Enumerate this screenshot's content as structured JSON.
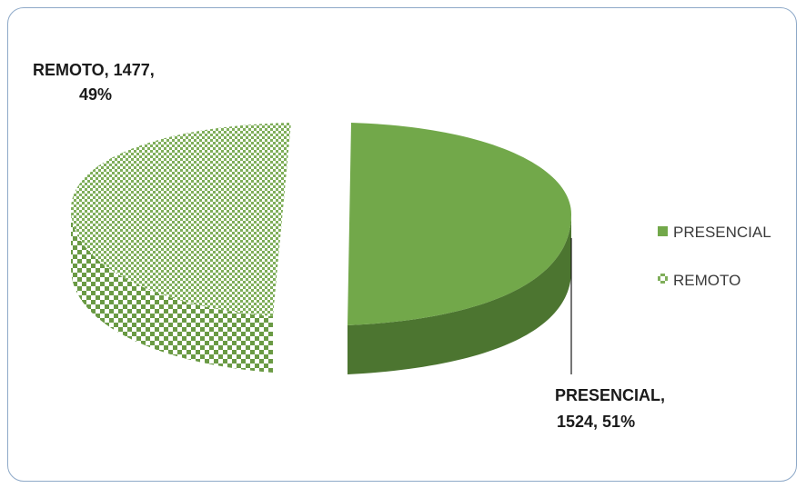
{
  "chart_data": {
    "type": "pie",
    "title": "",
    "categories": [
      "PRESENCIAL",
      "REMOTO"
    ],
    "values": [
      1524,
      1477
    ],
    "percents": [
      51,
      49
    ],
    "data_labels": [
      {
        "line1": "PRESENCIAL,",
        "line2": "1524, 51%"
      },
      {
        "line1": "REMOTO, 1477,",
        "line2": "49%"
      }
    ],
    "legend": {
      "placement": "right",
      "entries": [
        "PRESENCIAL",
        "REMOTO"
      ]
    },
    "colors": {
      "presencial": "#72a84a",
      "presencial_side": "#4c7530",
      "remoto_pattern_a": "#7fae5a",
      "remoto_pattern_b": "#ffffff",
      "frame": "#8ea9c8"
    },
    "style": "3d-exploded"
  }
}
